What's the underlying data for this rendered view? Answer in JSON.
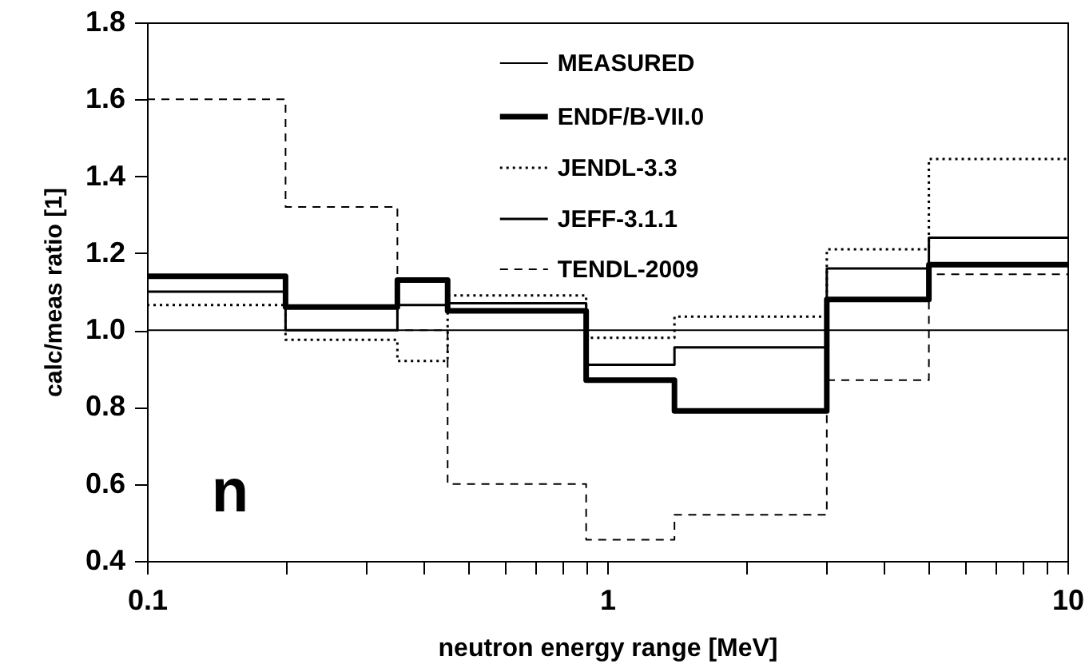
{
  "chart_data": {
    "type": "step",
    "xlabel": "neutron energy range [MeV]",
    "ylabel": "calc/meas ratio [1]",
    "log": "x",
    "grid": false,
    "legend": "top",
    "annotations": [
      "n"
    ],
    "x": [
      0.1,
      0.2,
      0.35,
      0.45,
      0.9,
      1.4,
      3,
      5,
      10
    ],
    "xlim": [
      0.1,
      10
    ],
    "xticks": [
      0.1,
      {
        "value": 0.2,
        "label": null
      },
      {
        "value": 0.3,
        "label": null
      },
      {
        "value": 0.4,
        "label": null
      },
      {
        "value": 0.5,
        "label": null
      },
      {
        "value": 0.6,
        "label": null
      },
      {
        "value": 0.7,
        "label": null
      },
      {
        "value": 0.8,
        "label": null
      },
      {
        "value": 0.9,
        "label": null
      },
      1,
      {
        "value": 2,
        "label": null
      },
      {
        "value": 3,
        "label": null
      },
      {
        "value": 4,
        "label": null
      },
      {
        "value": 5,
        "label": null
      },
      {
        "value": 6,
        "label": null
      },
      {
        "value": 7,
        "label": null
      },
      {
        "value": 8,
        "label": null
      },
      {
        "value": 9,
        "label": null
      },
      10
    ],
    "ylim": [
      0.4,
      1.8
    ],
    "yticks": [
      0.4,
      0.6,
      0.8,
      {
        "value": 1,
        "label": "1.0"
      },
      1.2,
      1.4,
      1.6,
      1.8
    ],
    "series": [
      {
        "name": "MEASURED",
        "color": "#000000",
        "line_style": "solid",
        "values": [
          1,
          1,
          1,
          1,
          1,
          1,
          1,
          1,
          1
        ]
      },
      {
        "name": "ENDF/B-VII.0",
        "color": "#000000",
        "line_style": "solid",
        "values": [
          1.14,
          1.06,
          1.13,
          1.05,
          0.87,
          0.79,
          1.08,
          1.17,
          1.17
        ]
      },
      {
        "name": "JENDL-3.3",
        "color": "#000000",
        "line_style": "dotted",
        "values": [
          1.065,
          0.975,
          0.92,
          1.09,
          0.98,
          1.035,
          1.21,
          1.445,
          1.445
        ]
      },
      {
        "name": "JEFF-3.1.1",
        "color": "#000000",
        "line_style": "solid",
        "values": [
          1.1,
          1.0,
          1.065,
          1.07,
          0.91,
          0.955,
          1.16,
          1.24,
          1.24
        ]
      },
      {
        "name": "TENDL-2009",
        "color": "#000000",
        "line_style": "dashed",
        "values": [
          1.6,
          1.32,
          1.0,
          0.6,
          0.455,
          0.52,
          0.87,
          1.145,
          1.145
        ]
      }
    ]
  }
}
